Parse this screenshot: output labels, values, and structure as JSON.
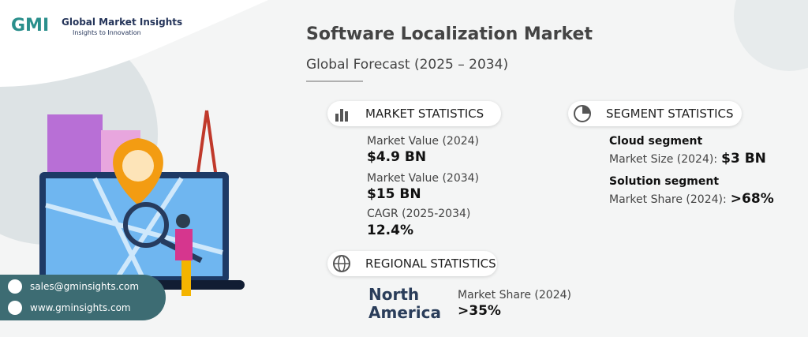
{
  "logo": {
    "mark": "GMI",
    "name": "Global Market Insights",
    "tagline": "Insights to Innovation"
  },
  "header": {
    "title": "Software Localization Market",
    "subtitle": "Global Forecast (2025 – 2034)"
  },
  "market_statistics": {
    "heading": "MARKET STATISTICS",
    "items": [
      {
        "label": "Market Value (2024)",
        "value": "$4.9 BN"
      },
      {
        "label": "Market Value (2034)",
        "value": "$15 BN"
      },
      {
        "label": "CAGR (2025-2034)",
        "value": "12.4%"
      }
    ]
  },
  "segment_statistics": {
    "heading": "SEGMENT STATISTICS",
    "items": [
      {
        "segment": "Cloud segment",
        "label": "Market Size (2024):",
        "value": "$3 BN"
      },
      {
        "segment": "Solution segment",
        "label": "Market Share (2024):",
        "value": ">68%"
      }
    ]
  },
  "regional_statistics": {
    "heading": "REGIONAL STATISTICS",
    "region": "North America",
    "label": "Market Share (2024)",
    "value": ">35%"
  },
  "contact": {
    "email": "sales@gminsights.com",
    "website": "www.gminsights.com"
  }
}
